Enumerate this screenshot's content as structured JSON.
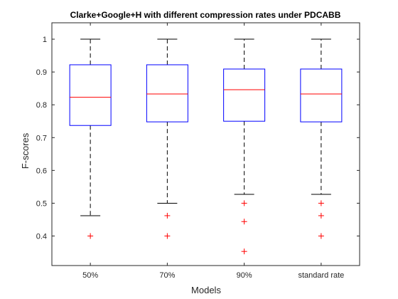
{
  "chart_data": {
    "type": "box",
    "title": "Clarke+Google+H with different compression rates under PDCABB",
    "xlabel": "Models",
    "ylabel": "F-scores",
    "ylim": [
      0.31,
      1.05
    ],
    "yticks": [
      0.4,
      0.5,
      0.6,
      0.7,
      0.8,
      0.9,
      1
    ],
    "ytick_labels": [
      "0.4",
      "0.5",
      "0.6",
      "0.7",
      "0.8",
      "0.9",
      "1"
    ],
    "grid": false,
    "categories": [
      "50%",
      "70%",
      "90%",
      "standard rate"
    ],
    "boxes": [
      {
        "category": "50%",
        "whisker_low": 0.462,
        "q1": 0.737,
        "median": 0.823,
        "q3": 0.922,
        "whisker_high": 1.0,
        "outliers": [
          0.4
        ]
      },
      {
        "category": "70%",
        "whisker_low": 0.5,
        "q1": 0.748,
        "median": 0.833,
        "q3": 0.922,
        "whisker_high": 1.0,
        "outliers": [
          0.462,
          0.4
        ]
      },
      {
        "category": "90%",
        "whisker_low": 0.527,
        "q1": 0.75,
        "median": 0.846,
        "q3": 0.909,
        "whisker_high": 1.0,
        "outliers": [
          0.5,
          0.444,
          0.353
        ]
      },
      {
        "category": "standard rate",
        "whisker_low": 0.527,
        "q1": 0.748,
        "median": 0.833,
        "q3": 0.909,
        "whisker_high": 1.0,
        "outliers": [
          0.5,
          0.462,
          0.4
        ]
      }
    ],
    "colors": {
      "box": "#0000ff",
      "median": "#ff0000",
      "whisker": "#000000",
      "outlier": "#ff0000",
      "axes": "#262626",
      "background": "#ffffff"
    }
  }
}
